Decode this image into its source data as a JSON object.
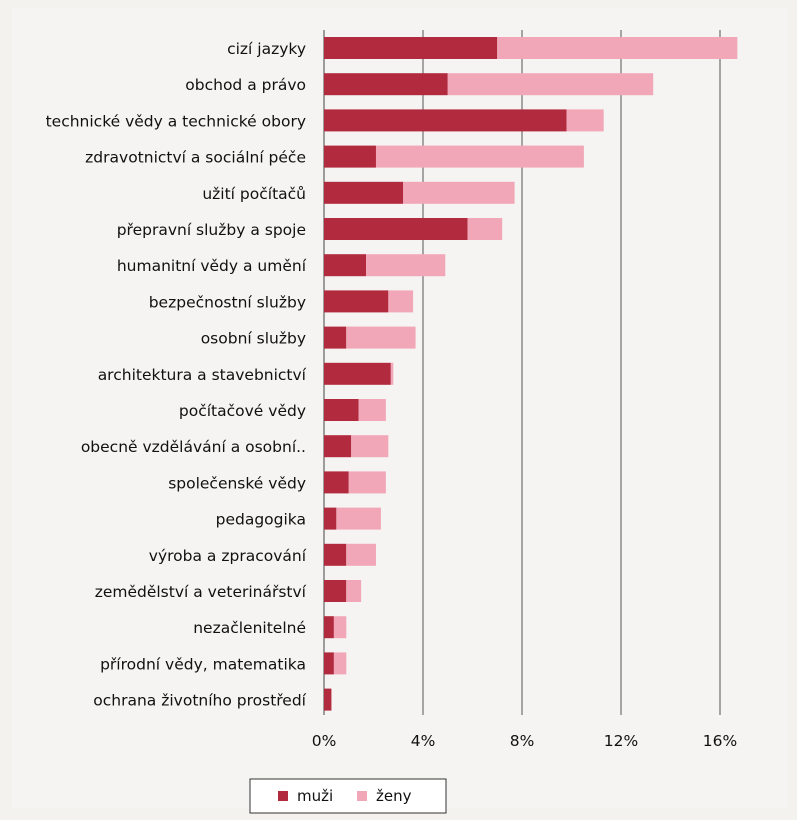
{
  "chart_data": {
    "type": "bar",
    "orientation": "horizontal",
    "stacked": true,
    "categories": [
      "cizí jazyky",
      "obchod a právo",
      "technické vědy a technické obory",
      "zdravotnictví a sociální péče",
      "užití počítačů",
      "přepravní služby a spoje",
      "humanitní vědy a umění",
      "bezpečnostní služby",
      "osobní služby",
      "architektura a stavebnictví",
      "počítačové vědy",
      "obecně vzdělávání a osobní..",
      "společenské vědy",
      "pedagogika",
      "výroba a zpracování",
      "zemědělství a veterinářství",
      "nezačlenitelné",
      "přírodní vědy, matematika",
      "ochrana životního prostředí"
    ],
    "series": [
      {
        "name": "muži",
        "color": "#b22a3d",
        "values": [
          7.0,
          5.0,
          9.8,
          2.1,
          3.2,
          5.8,
          1.7,
          2.6,
          0.9,
          2.7,
          1.4,
          1.1,
          1.0,
          0.5,
          0.9,
          0.9,
          0.4,
          0.4,
          0.3
        ]
      },
      {
        "name": "ženy",
        "color": "#f2a7b8",
        "values": [
          9.7,
          8.3,
          1.5,
          8.4,
          4.5,
          1.4,
          3.2,
          1.0,
          2.8,
          0.1,
          1.1,
          1.5,
          1.5,
          1.8,
          1.2,
          0.6,
          0.5,
          0.5,
          0.0
        ]
      }
    ],
    "xticks": [
      "0%",
      "4%",
      "8%",
      "12%",
      "16%"
    ],
    "xlim": [
      0,
      17.2
    ],
    "grid": true,
    "legend_position": "bottom"
  }
}
